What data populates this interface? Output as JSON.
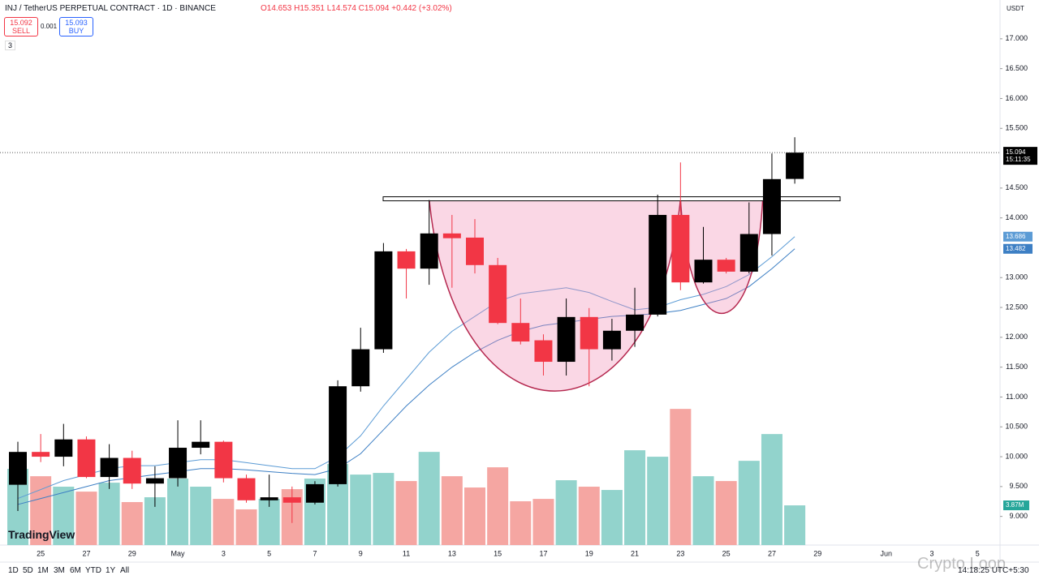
{
  "header": {
    "symbol": "INJ / TetherUS PERPETUAL CONTRACT · 1D · BINANCE",
    "ohlc": "O14.653 H15.351 L14.574 C15.094 +0.442 (+3.02%)",
    "sell_price": "15.092",
    "sell": "SELL",
    "spread": "0.001",
    "buy_price": "15.093",
    "buy": "BUY",
    "indicators": "3",
    "currency": "USDT",
    "logo": "TradingView",
    "watermark": "Crypto Loop"
  },
  "toolbar": {
    "ranges": [
      "1D",
      "5D",
      "1M",
      "3M",
      "6M",
      "YTD",
      "1Y",
      "All"
    ],
    "time": "14:18:25 UTC+5:30"
  },
  "chart_data": {
    "type": "candlestick",
    "categories": [
      null,
      "25",
      null,
      "27",
      null,
      "29",
      null,
      "May",
      null,
      "3",
      null,
      "5",
      null,
      "7",
      null,
      "9",
      null,
      "11",
      null,
      "13",
      null,
      "15",
      null,
      "17",
      null,
      "19",
      null,
      "21",
      null,
      "23",
      null,
      "25",
      null,
      "27",
      null,
      "29",
      null,
      null,
      "Jun",
      null,
      "3",
      null,
      "5"
    ],
    "open": [
      9.53,
      10.08,
      10.0,
      10.29,
      9.66,
      9.98,
      9.55,
      9.64,
      10.15,
      10.25,
      9.64,
      9.27,
      9.32,
      9.23,
      9.54,
      11.18,
      11.8,
      13.44,
      13.15,
      13.74,
      13.67,
      13.21,
      12.24,
      11.95,
      11.59,
      12.34,
      11.8,
      12.11,
      12.38,
      14.05,
      12.92,
      13.3,
      13.1,
      13.73,
      14.653,
      null,
      null,
      null,
      null,
      null,
      null,
      null,
      null
    ],
    "high": [
      10.25,
      10.38,
      10.55,
      10.34,
      10.21,
      10.1,
      9.84,
      10.61,
      10.61,
      10.27,
      9.7,
      9.7,
      9.5,
      9.59,
      11.28,
      12.16,
      13.58,
      13.48,
      14.3,
      14.05,
      13.98,
      13.33,
      12.65,
      12.05,
      12.65,
      12.49,
      12.31,
      12.83,
      14.39,
      14.93,
      13.85,
      13.33,
      14.26,
      15.08,
      15.351,
      null,
      null,
      null,
      null,
      null,
      null,
      null,
      null
    ],
    "low": [
      9.09,
      9.91,
      9.84,
      9.64,
      9.46,
      9.46,
      9.16,
      9.5,
      10.04,
      9.57,
      9.23,
      9.16,
      8.89,
      9.2,
      9.5,
      11.09,
      11.74,
      12.65,
      12.88,
      12.83,
      13.07,
      12.22,
      11.88,
      11.36,
      11.36,
      11.18,
      11.61,
      11.84,
      12.35,
      12.79,
      12.9,
      13.07,
      13.07,
      13.37,
      14.574,
      null,
      null,
      null,
      null,
      null,
      null,
      null,
      null
    ],
    "close": [
      10.08,
      10.0,
      10.29,
      9.66,
      9.98,
      9.55,
      9.64,
      10.15,
      10.25,
      9.64,
      9.27,
      9.32,
      9.23,
      9.54,
      11.18,
      11.8,
      13.44,
      13.15,
      13.74,
      13.66,
      13.21,
      12.24,
      11.93,
      11.59,
      12.34,
      11.8,
      12.11,
      12.38,
      14.05,
      12.92,
      13.3,
      13.1,
      13.73,
      14.65,
      15.094,
      null,
      null,
      null,
      null,
      null,
      null,
      null,
      null
    ],
    "up_color": "#000000",
    "down_color": "#f23645",
    "volume": {
      "values": [
        7.43,
        6.71,
        5.69,
        5.21,
        6.08,
        4.19,
        4.66,
        6.48,
        5.69,
        4.5,
        3.48,
        4.5,
        5.45,
        6.48,
        7.9,
        6.87,
        7.03,
        6.24,
        9.08,
        6.71,
        5.61,
        7.58,
        4.27,
        4.5,
        6.32,
        5.69,
        5.37,
        9.24,
        8.61,
        13.27,
        6.71,
        6.24,
        8.21,
        10.82,
        3.87,
        null,
        null,
        null,
        null,
        null,
        null,
        null,
        null
      ],
      "up_color": "#92d3cc",
      "down_color": "#f5a6a2",
      "ylim": [
        0,
        20
      ],
      "last_label": "3.87M"
    },
    "lines": [
      {
        "color": "#5b9bd5",
        "values": [
          9.3,
          9.45,
          9.6,
          9.7,
          9.8,
          9.85,
          9.85,
          9.9,
          9.95,
          9.95,
          9.9,
          9.85,
          9.8,
          9.8,
          10.0,
          10.35,
          10.85,
          11.3,
          11.75,
          12.1,
          12.35,
          12.6,
          12.73,
          12.78,
          12.83,
          12.75,
          12.6,
          12.46,
          12.5,
          12.63,
          12.72,
          12.85,
          13.05,
          13.35,
          13.686,
          null,
          null,
          null,
          null,
          null,
          null,
          null,
          null
        ]
      },
      {
        "color": "#3d7fc4",
        "values": [
          9.2,
          9.3,
          9.4,
          9.5,
          9.6,
          9.65,
          9.7,
          9.75,
          9.8,
          9.8,
          9.78,
          9.75,
          9.72,
          9.7,
          9.8,
          10.05,
          10.45,
          10.85,
          11.2,
          11.5,
          11.75,
          11.95,
          12.1,
          12.2,
          12.25,
          12.3,
          12.35,
          12.37,
          12.4,
          12.45,
          12.55,
          12.65,
          12.85,
          13.15,
          13.482,
          null,
          null,
          null,
          null,
          null,
          null,
          null,
          null
        ]
      }
    ],
    "resistance": 14.32,
    "cup_low": 11.1,
    "handle_low": 12.4,
    "countdown": "15:11:35",
    "ylim": [
      8.52,
      17.65
    ],
    "yticks": [
      {
        "value": 9,
        "label": "9.000"
      },
      {
        "value": 9.5,
        "label": "9.500"
      },
      {
        "value": 10,
        "label": "10.000"
      },
      {
        "value": 10.5,
        "label": "10.500"
      },
      {
        "value": 11,
        "label": "11.000"
      },
      {
        "value": 11.5,
        "label": "11.500"
      },
      {
        "value": 12,
        "label": "12.000"
      },
      {
        "value": 12.5,
        "label": "12.500"
      },
      {
        "value": 13,
        "label": "13.000"
      },
      {
        "value": 14,
        "label": "14.000"
      },
      {
        "value": 14.5,
        "label": "14.500"
      },
      {
        "value": 15.5,
        "label": "15.500"
      },
      {
        "value": 16,
        "label": "16.000"
      },
      {
        "value": 16.5,
        "label": "16.500"
      },
      {
        "value": 17,
        "label": "17.000"
      }
    ]
  }
}
